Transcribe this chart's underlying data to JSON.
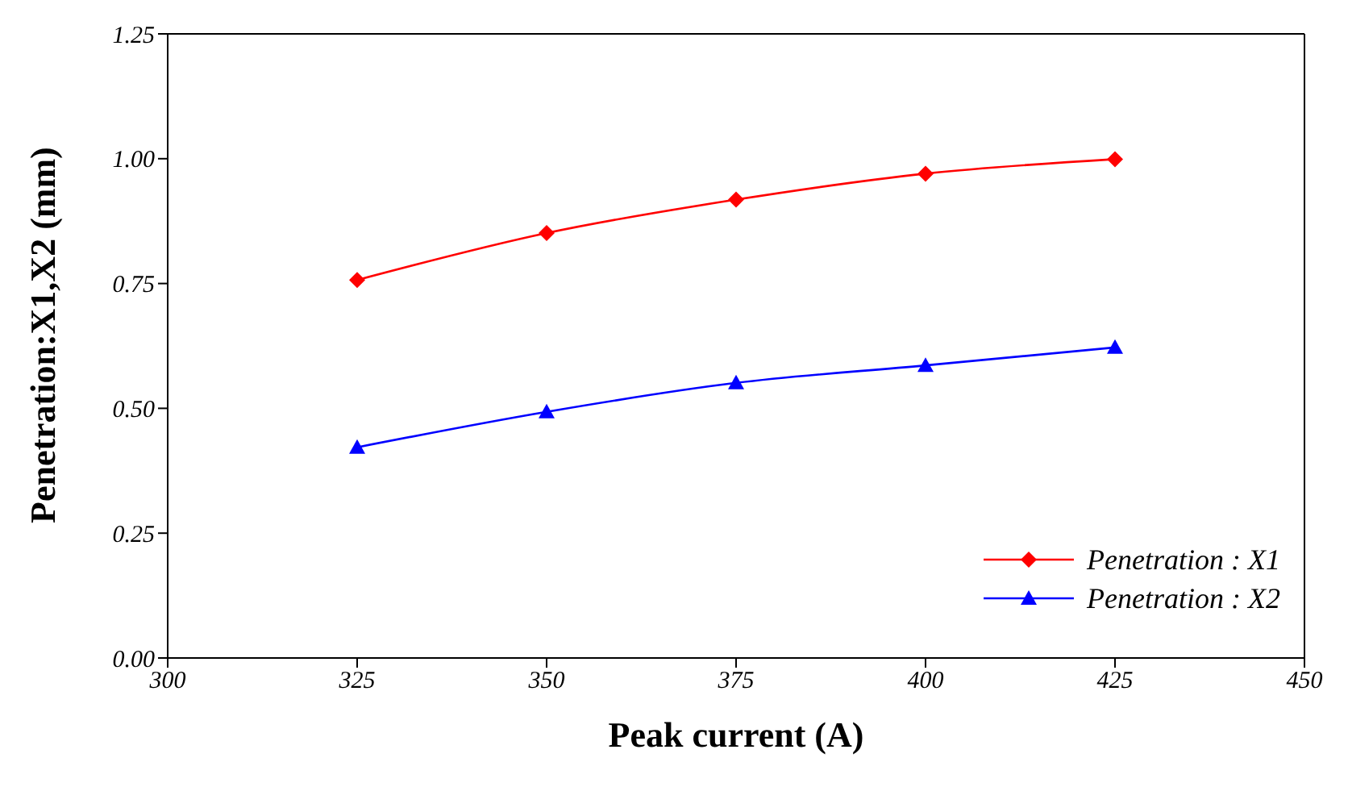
{
  "chart_data": {
    "type": "line",
    "xlabel": "Peak current (A)",
    "ylabel": "Penetration:X1,X2 (mm)",
    "x": [
      325,
      350,
      375,
      400,
      425
    ],
    "series": [
      {
        "name": "Penetration : X1",
        "color": "#ff0000",
        "marker": "diamond",
        "values": [
          0.757,
          0.851,
          0.918,
          0.97,
          0.999
        ]
      },
      {
        "name": "Penetration : X2",
        "color": "#0000ff",
        "marker": "triangle",
        "values": [
          0.422,
          0.493,
          0.551,
          0.586,
          0.622
        ]
      }
    ],
    "xlim": [
      300,
      450
    ],
    "xticks": [
      300,
      325,
      350,
      375,
      400,
      425,
      450
    ],
    "ylim": [
      0,
      1.25
    ],
    "yticks": [
      {
        "value": 0,
        "label": "0.00"
      },
      0.25,
      {
        "value": 0.5,
        "label": "0.50"
      },
      0.75,
      {
        "value": 1,
        "label": "1.00"
      },
      1.25
    ],
    "grid": false,
    "legend": "bottom right",
    "line_style": "solid"
  }
}
